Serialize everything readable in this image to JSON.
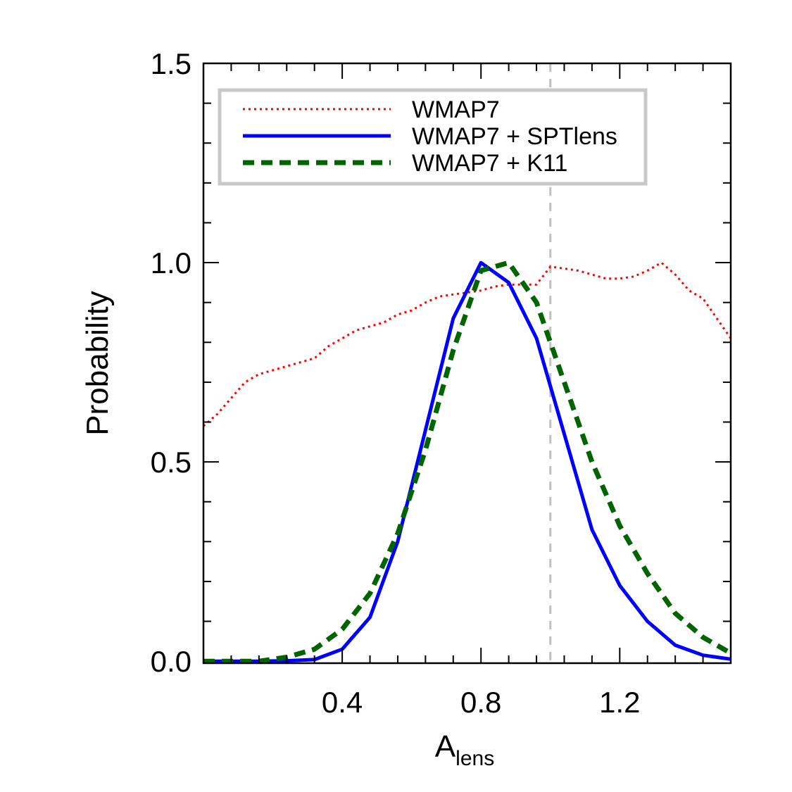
{
  "chart_data": {
    "type": "line",
    "xlabel_main": "A",
    "xlabel_sub": "lens",
    "ylabel": "Probability",
    "xlim": [
      0.0,
      1.52
    ],
    "ylim": [
      -0.005,
      1.5
    ],
    "x_ticks": [
      0.4,
      0.8,
      1.2
    ],
    "x_tick_labels": [
      "0.4",
      "0.8",
      "1.2"
    ],
    "y_ticks": [
      0.0,
      0.5,
      1.0,
      1.5
    ],
    "y_tick_labels": [
      "0.0",
      "0.5",
      "1.0",
      "1.5"
    ],
    "reference_line_x": 1.0,
    "legend": {
      "placement": "top-left"
    },
    "series": [
      {
        "name": "WMAP7",
        "style": "dotted",
        "color": "#ff0000",
        "x": [
          0.0,
          0.04,
          0.08,
          0.12,
          0.16,
          0.2,
          0.24,
          0.28,
          0.32,
          0.36,
          0.4,
          0.44,
          0.48,
          0.52,
          0.56,
          0.6,
          0.64,
          0.68,
          0.72,
          0.76,
          0.8,
          0.84,
          0.88,
          0.92,
          0.96,
          1.0,
          1.04,
          1.08,
          1.12,
          1.16,
          1.2,
          1.24,
          1.28,
          1.32,
          1.36,
          1.4,
          1.44,
          1.48,
          1.52
        ],
        "y": [
          0.59,
          0.62,
          0.66,
          0.7,
          0.72,
          0.73,
          0.74,
          0.75,
          0.76,
          0.79,
          0.81,
          0.83,
          0.84,
          0.85,
          0.87,
          0.88,
          0.9,
          0.915,
          0.92,
          0.925,
          0.93,
          0.94,
          0.945,
          0.945,
          0.945,
          0.99,
          0.985,
          0.98,
          0.97,
          0.96,
          0.96,
          0.965,
          0.98,
          1.0,
          0.97,
          0.93,
          0.91,
          0.86,
          0.81
        ]
      },
      {
        "name": "WMAP7 + SPTlens",
        "style": "solid",
        "color": "#0000ff",
        "x": [
          0.0,
          0.08,
          0.16,
          0.24,
          0.32,
          0.4,
          0.48,
          0.56,
          0.64,
          0.72,
          0.8,
          0.88,
          0.96,
          1.04,
          1.12,
          1.2,
          1.28,
          1.36,
          1.44,
          1.52
        ],
        "y": [
          0.0,
          0.0,
          0.0,
          0.001,
          0.004,
          0.03,
          0.11,
          0.3,
          0.58,
          0.86,
          1.0,
          0.95,
          0.81,
          0.57,
          0.33,
          0.19,
          0.1,
          0.04,
          0.015,
          0.005
        ]
      },
      {
        "name": "WMAP7 + K11",
        "style": "dashed",
        "color": "#006400",
        "x": [
          0.0,
          0.08,
          0.16,
          0.24,
          0.32,
          0.4,
          0.48,
          0.56,
          0.64,
          0.72,
          0.8,
          0.88,
          0.96,
          1.04,
          1.12,
          1.2,
          1.28,
          1.36,
          1.44,
          1.52
        ],
        "y": [
          0.0,
          0.0,
          0.0,
          0.01,
          0.03,
          0.08,
          0.17,
          0.32,
          0.53,
          0.78,
          0.98,
          1.0,
          0.9,
          0.7,
          0.5,
          0.34,
          0.22,
          0.12,
          0.06,
          0.02
        ]
      }
    ]
  }
}
